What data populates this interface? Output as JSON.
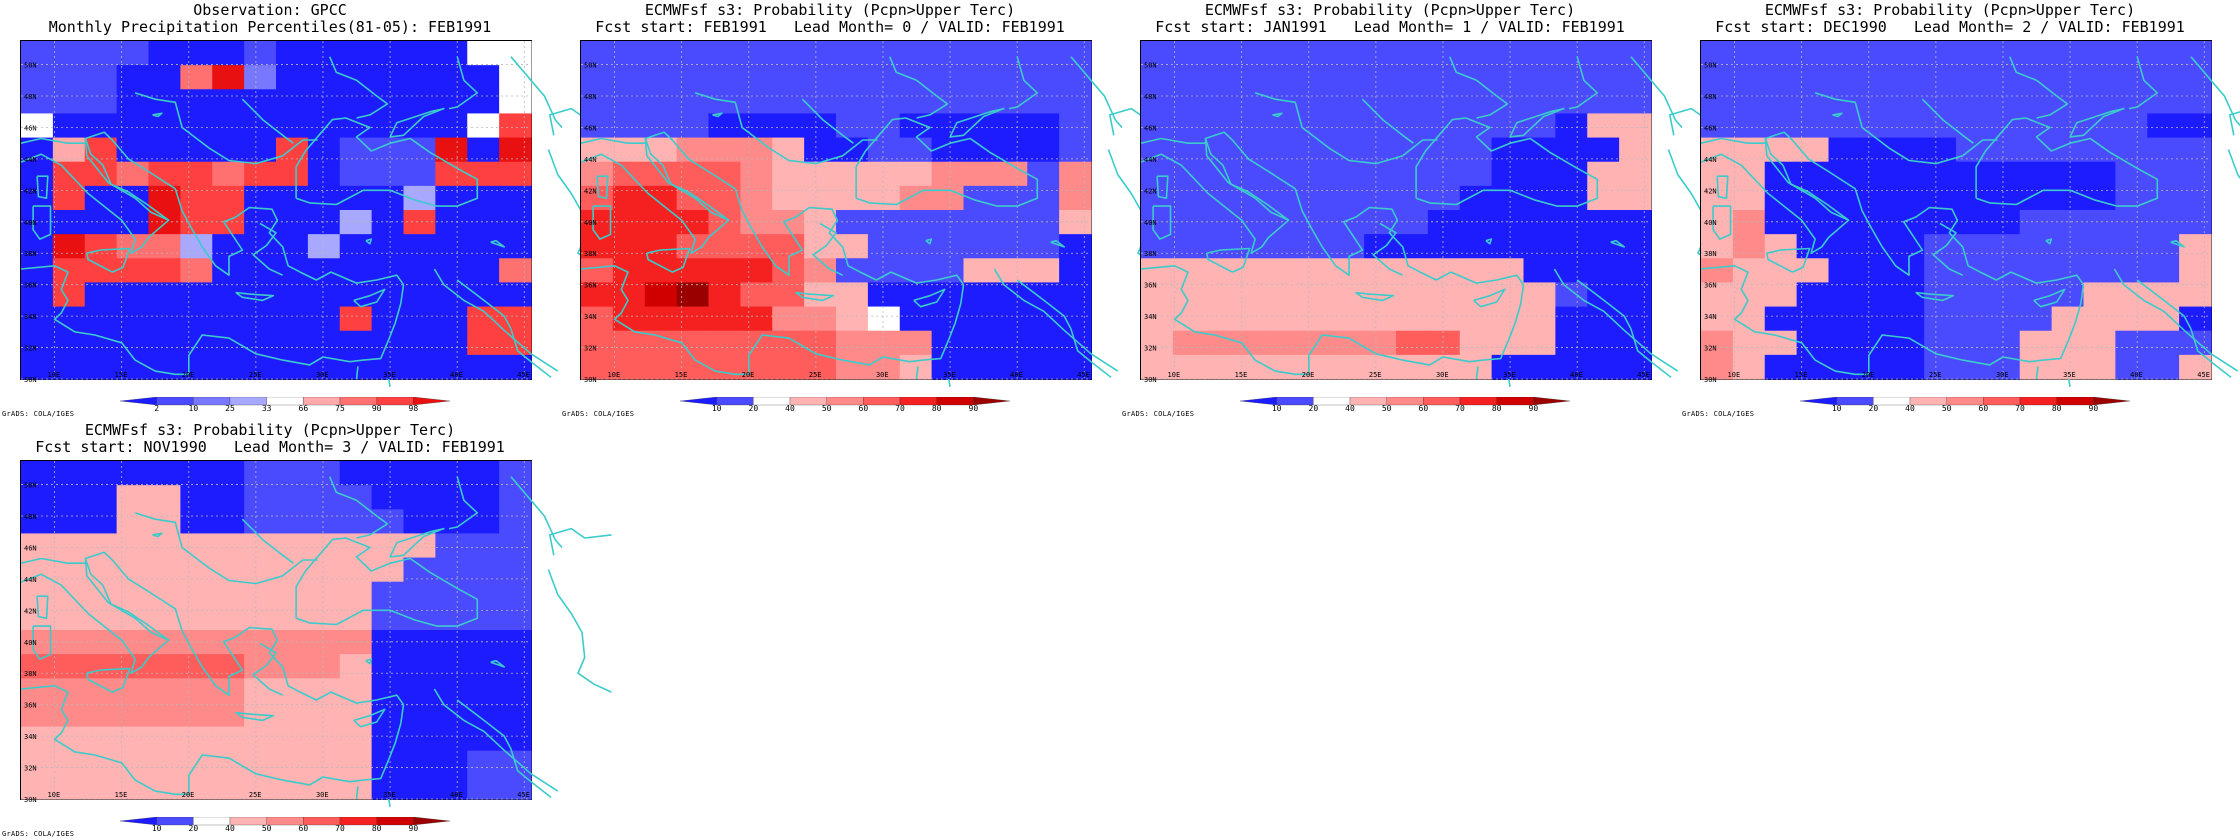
{
  "colors": {
    "coastline": "#3ccbcb",
    "grid": "#b8b8b8"
  },
  "axis": {
    "lon_labels": [
      "10E",
      "15E",
      "20E",
      "25E",
      "30E",
      "35E",
      "40E",
      "45E"
    ],
    "lat_labels": [
      "30N",
      "32N",
      "34N",
      "36N",
      "38N",
      "40N",
      "42N",
      "44N",
      "46N",
      "48N",
      "50N"
    ],
    "lon_range": [
      7.5,
      45.5
    ],
    "lat_range": [
      30,
      51.5
    ]
  },
  "colorbars": {
    "obs": {
      "labels": [
        "2",
        "10",
        "25",
        "33",
        "66",
        "75",
        "90",
        "98"
      ],
      "colors": [
        "#1c1cff",
        "#4a4aff",
        "#7878ff",
        "#a8a8ff",
        "#ffffff",
        "#ffaaaa",
        "#ff7070",
        "#ff4040",
        "#e81010"
      ]
    },
    "prob": {
      "labels": [
        "10",
        "20",
        "40",
        "50",
        "60",
        "70",
        "80",
        "90"
      ],
      "colors": [
        "#1c1cff",
        "#4a4aff",
        "#ffffff",
        "#ffb3b3",
        "#ff8a8a",
        "#ff5c5c",
        "#f52020",
        "#d00000",
        "#9a0000"
      ]
    }
  },
  "credit": "GrADS: COLA/IGES",
  "panels": [
    {
      "line1": "Observation: GPCC",
      "line2": "Monthly Precipitation Percentiles(81-05): FEB1991",
      "scale": "obs",
      "grid": [
        "1111000100000099",
        "1110068200000009",
        "1110000000000009",
        "9000000000000097",
        "0570000070111808",
        "0776776770111777",
        "0700877000003000",
        "0000877000307000",
        "0876630003000000",
        "0777760000000006",
        "0700000000000000",
        "0000000000700077",
        "0000000000000077",
        "0000000000000000"
      ]
    },
    {
      "line1": "ECMWFsf s3: Probability (Pcpn>Upper Terc)",
      "line2": "Fcst start: FEB1991   Lead Month= 0 / VALID: FEB1991",
      "scale": "prob",
      "grid": [
        "1111111111111111",
        "1111111111111111",
        "1111111111111111",
        "1111000011000001",
        "3334443001100001",
        "4555543333344414",
        "5665543333441114",
        "6666544311111113",
        "6665555331111110",
        "5666665411113330",
        "6678655330000000",
        "5666664432000000",
        "5555555544400000",
        "5555555544300000"
      ]
    },
    {
      "line1": "ECMWFsf s3: Probability (Pcpn>Upper Terc)",
      "line2": "Fcst start: JAN1991   Lead Month= 1 / VALID: FEB1991",
      "scale": "prob",
      "grid": [
        "1111111111111111",
        "1111111111111111",
        "1111111111111111",
        "1111111111111033",
        "1111111111100003",
        "1111111111100033",
        "1111111111000033",
        "1111111110000000",
        "1111111000000000",
        "3333333333330000",
        "3333333333333100",
        "3333333333333000",
        "3444444455333000",
        "3333333333300000"
      ]
    },
    {
      "line1": "ECMWFsf s3: Probability (Pcpn>Upper Terc)",
      "line2": "Fcst start: DEC1990   Lead Month= 2 / VALID: FEB1991",
      "scale": "prob",
      "grid": [
        "1111111111111111",
        "1111111111111111",
        "1111111111111111",
        "1111111111111100",
        "3333000011111111",
        "3300000000000111",
        "3300000000000111",
        "3400000000111111",
        "3430000111111113",
        "4333000111111113",
        "3330000111113333",
        "3300000111133330",
        "4330000111333111",
        "4300000111333113"
      ]
    },
    {
      "line1": "ECMWFsf s3: Probability (Pcpn>Upper Terc)",
      "line2": "Fcst start: NOV1990   Lead Month= 3 / VALID: FEB1991",
      "scale": "prob",
      "grid": [
        "0000000111000001",
        "0003300111100001",
        "0003300111110001",
        "3333333333333111",
        "3333333333331111",
        "3333333333311111",
        "3333333333311111",
        "4444444444400000",
        "5555555444300000",
        "4444444333300000",
        "4444444333300000",
        "3333333333300000",
        "3333333333300011",
        "3333333333300011"
      ]
    }
  ]
}
